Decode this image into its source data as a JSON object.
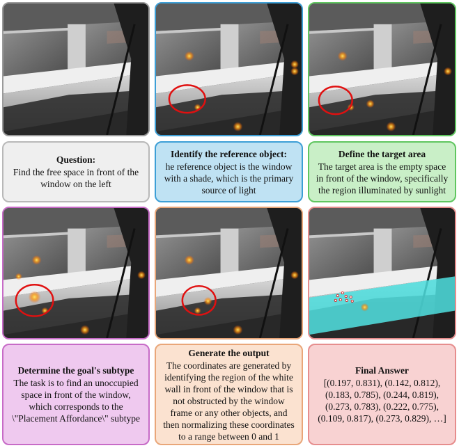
{
  "steps": [
    {
      "title": "Question:",
      "text": "Find the free space in front of the window on the left"
    },
    {
      "title": "Identify the reference object:",
      "text": "he reference object is the window with a shade, which is the primary source of light"
    },
    {
      "title": "Define the target area",
      "text": "The target area is the empty space in front of the window, specifically the region illuminated by sunlight"
    },
    {
      "title": "Determine the goal's subtype",
      "text": "The task is to find an unoccupied space in front of the window, which corresponds to the \\\"Placement Affordance\\\" subtype"
    },
    {
      "title": "Generate the output",
      "text": "The coordinates are generated by identifying the region of the white wall in front of the window that is not obstructed by the window frame or any other objects, and then normalizing these coordinates to a range between 0 and 1"
    },
    {
      "title": "Final Answer",
      "text": "[(0.197, 0.831), (0.142, 0.812), (0.183, 0.785), (0.244, 0.819), (0.273, 0.783), (0.222, 0.775), (0.109, 0.817), (0.273, 0.829), …]"
    }
  ],
  "colors": {
    "gray": "#efefef",
    "blue": "#bfe2f3",
    "green": "#c9efc7",
    "violet": "#efc9ef",
    "peach": "#fbe2d0",
    "rose": "#f8d2d2",
    "highlight": "#4fe0e0",
    "marker": "#e01010",
    "heat": "#ffae00"
  }
}
